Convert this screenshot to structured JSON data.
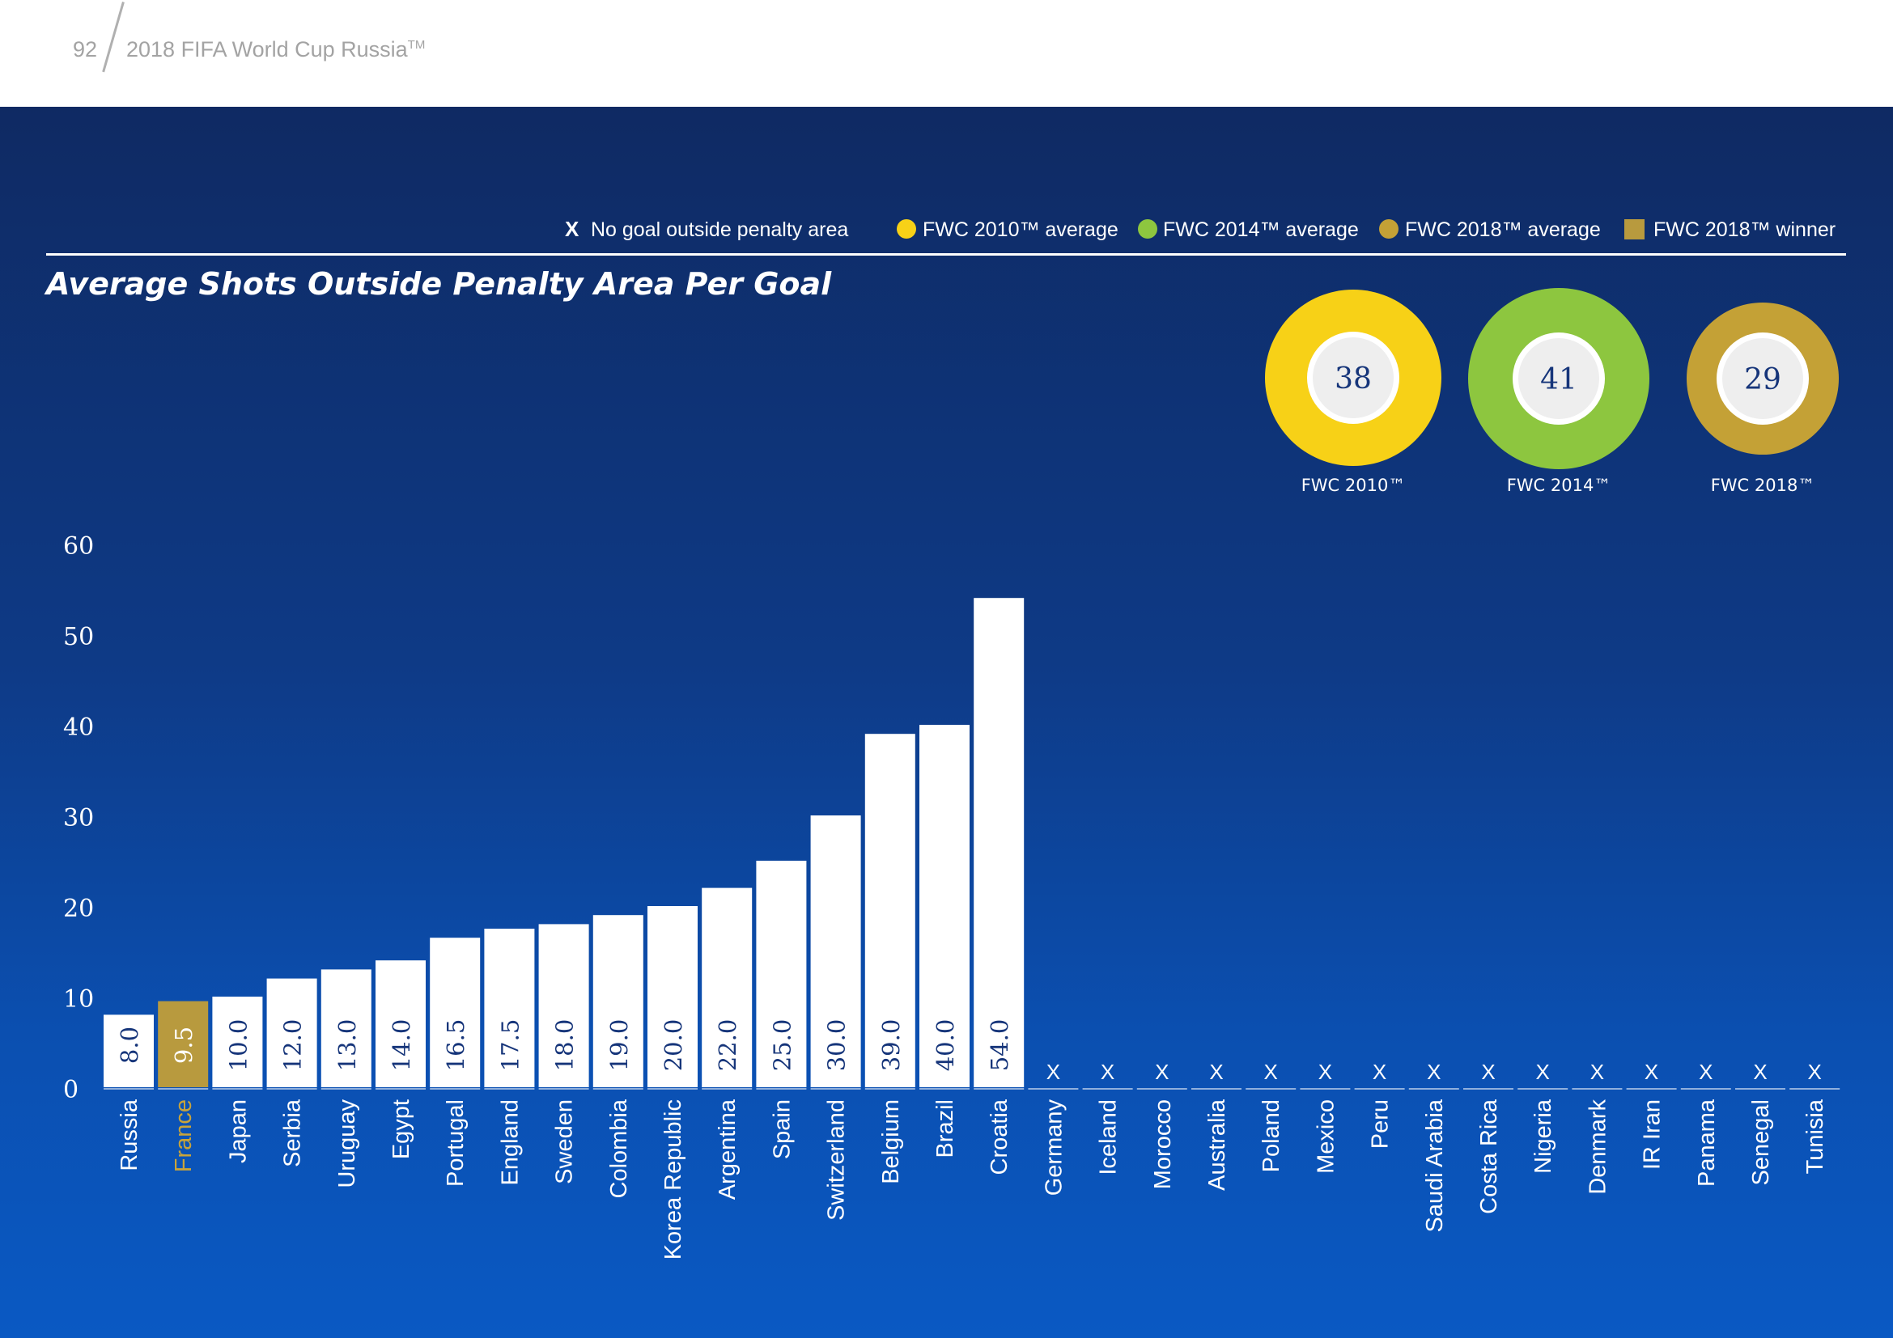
{
  "header": {
    "page_number": "92",
    "doc_title": "2018 FIFA World Cup Russia",
    "doc_title_tm": "TM"
  },
  "legend": {
    "no_goal": {
      "symbol": "X",
      "label": "No goal outside penalty area"
    },
    "items": [
      {
        "label": "FWC 2010™ average",
        "color": "#f7d117",
        "shape": "circle"
      },
      {
        "label": "FWC 2014™ average",
        "color": "#8dc63f",
        "shape": "circle"
      },
      {
        "label": "FWC 2018™ average",
        "color": "#c4a136",
        "shape": "circle"
      },
      {
        "label": "FWC 2018™ winner",
        "color": "#b89a3e",
        "shape": "square"
      }
    ]
  },
  "averages": [
    {
      "value": "38",
      "label": "FWC 2010™",
      "color": "#f7d117"
    },
    {
      "value": "41",
      "label": "FWC 2014™",
      "color": "#8dc63f"
    },
    {
      "value": "29",
      "label": "FWC 2018™",
      "color": "#c4a136"
    }
  ],
  "colors": {
    "bar": "#ffffff",
    "winner_bar": "#b89a3e",
    "winner_label": "#c9a43a",
    "value_text": "#16357a",
    "axis_text": "#ffffff",
    "badge_text": "#16357a"
  },
  "chart_data": {
    "type": "bar",
    "title": "Average Shots Outside Penalty Area Per Goal",
    "categories": [
      "Russia",
      "France",
      "Japan",
      "Serbia",
      "Uruguay",
      "Egypt",
      "Portugal",
      "England",
      "Sweden",
      "Colombia",
      "Korea Republic",
      "Argentina",
      "Spain",
      "Switzerland",
      "Belgium",
      "Brazil",
      "Croatia",
      "Germany",
      "Iceland",
      "Morocco",
      "Australia",
      "Poland",
      "Mexico",
      "Peru",
      "Saudi Arabia",
      "Costa Rica",
      "Nigeria",
      "Denmark",
      "IR Iran",
      "Panama",
      "Senegal",
      "Tunisia"
    ],
    "values": [
      8.0,
      9.5,
      10.0,
      12.0,
      13.0,
      14.0,
      16.5,
      17.5,
      18.0,
      19.0,
      20.0,
      22.0,
      25.0,
      30.0,
      39.0,
      40.0,
      54.0,
      null,
      null,
      null,
      null,
      null,
      null,
      null,
      null,
      null,
      null,
      null,
      null,
      null,
      null,
      null
    ],
    "value_labels": [
      "8.0",
      "9.5",
      "10.0",
      "12.0",
      "13.0",
      "14.0",
      "16.5",
      "17.5",
      "18.0",
      "19.0",
      "20.0",
      "22.0",
      "25.0",
      "30.0",
      "39.0",
      "40.0",
      "54.0",
      "X",
      "X",
      "X",
      "X",
      "X",
      "X",
      "X",
      "X",
      "X",
      "X",
      "X",
      "X",
      "X",
      "X",
      "X"
    ],
    "highlight": "France",
    "yticks": [
      "0",
      "10",
      "20",
      "30",
      "40",
      "50",
      "60"
    ],
    "ylim": [
      0,
      60
    ],
    "xlabel": "",
    "ylabel": ""
  }
}
